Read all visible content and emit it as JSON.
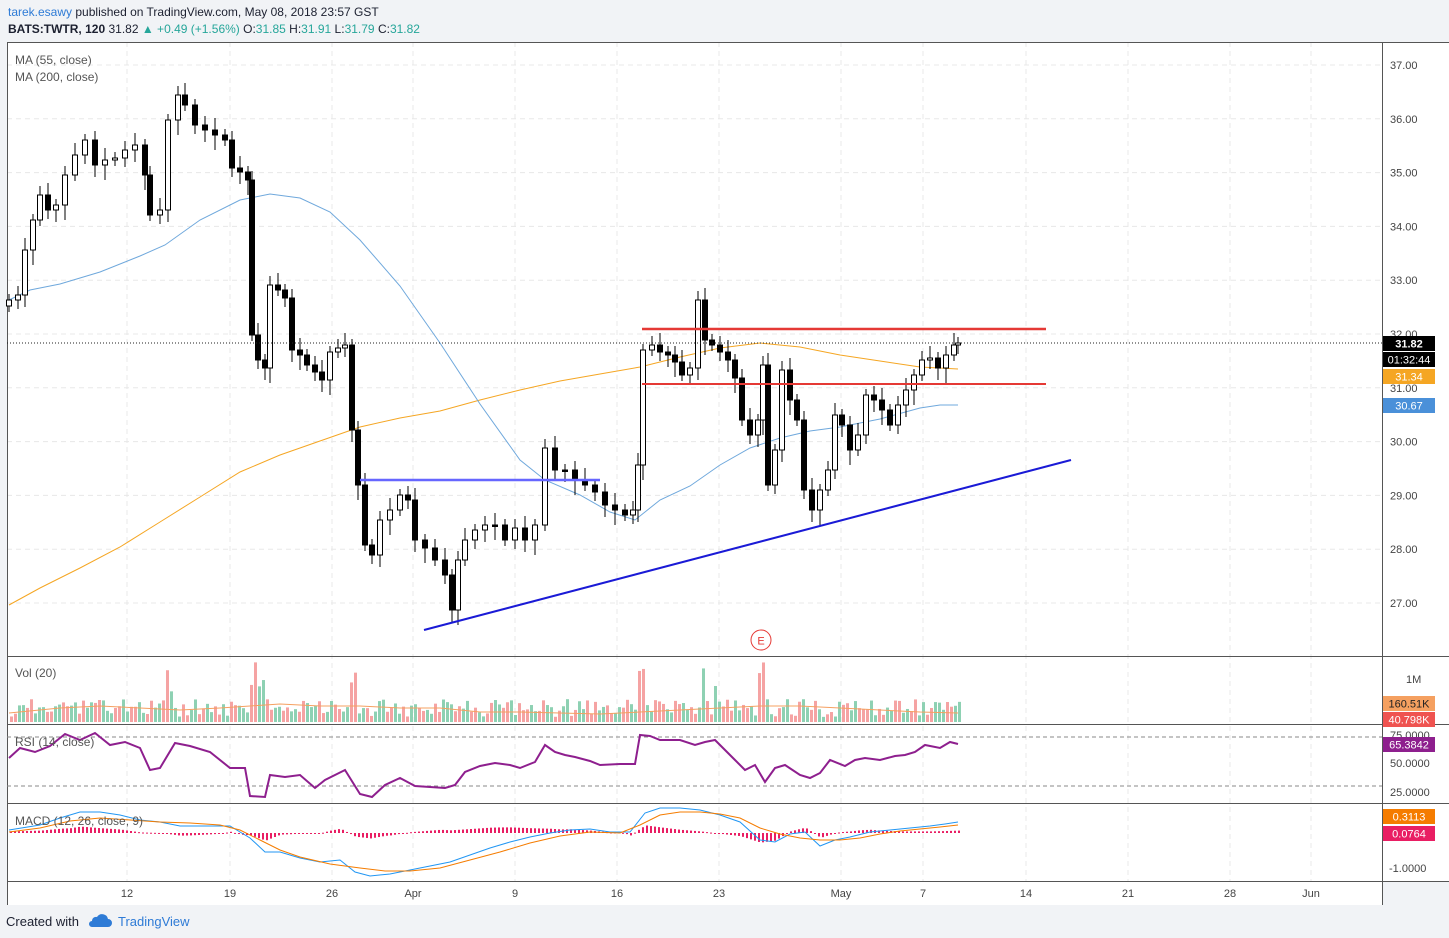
{
  "header": {
    "author": "tarek.esawy",
    "published_text": "published on TradingView.com, May 08, 2018 23:57 GST",
    "symbol_interval": "BATS:TWTR, 120",
    "last_price": "31.82",
    "change_text": "▲ +0.49 (+1.56%)",
    "open_label": "O:",
    "open": "31.85",
    "high_label": "H:",
    "high": "31.91",
    "low_label": "L:",
    "low": "31.79",
    "close_label": "C:",
    "close": "31.82"
  },
  "indicators": {
    "ma55_label": "MA (55, close)",
    "ma200_label": "MA (200, close)",
    "vol_label": "Vol (20)",
    "rsi_label": "RSI (14, close)",
    "macd_label": "MACD (12, 26, close, 9)"
  },
  "price_badges": {
    "last": "31.82",
    "countdown": "01:32:44",
    "ma200": "31.34",
    "ma55": "30.67"
  },
  "volume_badges": {
    "vol": "160.51K",
    "vol_ma": "40.798K"
  },
  "rsi_badge": "65.3842",
  "macd_badges": {
    "macd": "0.3113",
    "hist": "0.0764"
  },
  "earnings_marker": "E",
  "footer": {
    "created_with": "Created with",
    "brand": "TradingView"
  },
  "colors": {
    "up_candle": "#ffffff",
    "down_candle": "#000000",
    "wick": "#000000",
    "ma55": "#6fa8dc",
    "ma200": "#f5a623",
    "resistance": "#e53935",
    "support_line": "#1a1ad6",
    "horizontal_support": "#6666ff",
    "vol_up": "#8ed1b3",
    "vol_down": "#f5a3a3",
    "rsi": "#8e1f8e",
    "macd": "#2196f3",
    "signal": "#f57c00",
    "hist": "#e91e63"
  },
  "chart_data": {
    "type": "candlestick",
    "symbol": "BATS:TWTR",
    "interval": "120",
    "x_tick_labels": [
      "12",
      "19",
      "26",
      "Apr",
      "9",
      "16",
      "23",
      "May",
      "7",
      "14",
      "21",
      "28",
      "Jun"
    ],
    "price_axis": {
      "ticks": [
        27.0,
        28.0,
        29.0,
        30.0,
        31.0,
        32.0,
        33.0,
        34.0,
        35.0,
        36.0,
        37.0
      ],
      "ylim": [
        26.2,
        37.3
      ]
    },
    "last_price": 31.82,
    "key_closes_by_session": [
      {
        "session": "Mar 09",
        "value": 31.9
      },
      {
        "session": "Mar 12",
        "value": 35.0
      },
      {
        "session": "Mar 14",
        "value": 35.4
      },
      {
        "session": "Mar 16",
        "value": 36.6
      },
      {
        "session": "Mar 19",
        "value": 35.2
      },
      {
        "session": "Mar 20",
        "value": 34.8
      },
      {
        "session": "Mar 21",
        "value": 31.6
      },
      {
        "session": "Mar 22",
        "value": 32.7
      },
      {
        "session": "Mar 23",
        "value": 31.7
      },
      {
        "session": "Mar 26",
        "value": 31.4
      },
      {
        "session": "Mar 27",
        "value": 30.9
      },
      {
        "session": "Mar 28",
        "value": 28.4
      },
      {
        "session": "Mar 29",
        "value": 28.8
      },
      {
        "session": "Apr 02",
        "value": 27.9
      },
      {
        "session": "Apr 03",
        "value": 27.2
      },
      {
        "session": "Apr 04",
        "value": 28.2
      },
      {
        "session": "Apr 05",
        "value": 28.7
      },
      {
        "session": "Apr 06",
        "value": 28.3
      },
      {
        "session": "Apr 09",
        "value": 28.2
      },
      {
        "session": "Apr 10",
        "value": 29.3
      },
      {
        "session": "Apr 11",
        "value": 29.0
      },
      {
        "session": "Apr 12",
        "value": 28.9
      },
      {
        "session": "Apr 13",
        "value": 29.2
      },
      {
        "session": "Apr 16",
        "value": 28.6
      },
      {
        "session": "Apr 17",
        "value": 31.6
      },
      {
        "session": "Apr 18",
        "value": 31.4
      },
      {
        "session": "Apr 19",
        "value": 31.5
      },
      {
        "session": "Apr 20",
        "value": 32.3
      },
      {
        "session": "Apr 23",
        "value": 31.2
      },
      {
        "session": "Apr 24",
        "value": 30.4
      },
      {
        "session": "Apr 25",
        "value": 29.5
      },
      {
        "session": "Apr 26",
        "value": 31.0
      },
      {
        "session": "Apr 27",
        "value": 30.6
      },
      {
        "session": "Apr 30",
        "value": 28.8
      },
      {
        "session": "May 01",
        "value": 30.2
      },
      {
        "session": "May 02",
        "value": 30.4
      },
      {
        "session": "May 03",
        "value": 30.8
      },
      {
        "session": "May 04",
        "value": 30.4
      },
      {
        "session": "May 07",
        "value": 31.5
      },
      {
        "session": "May 08",
        "value": 31.82
      }
    ],
    "ma55_value": 30.67,
    "ma200_value": 31.34,
    "annotations": {
      "resistance_levels": [
        32.05,
        31.05
      ],
      "horizontal_support": 29.3,
      "rising_trendline": [
        {
          "session": "Apr 04",
          "value": 26.5
        },
        {
          "session": "May 16",
          "value": 29.6
        }
      ]
    },
    "volume": {
      "axis_ticks": [
        "1M"
      ],
      "last": "160.51K",
      "ma": "40.798K"
    },
    "rsi": {
      "axis_ticks": [
        25.0,
        50.0,
        75.0
      ],
      "last": 65.3842,
      "levels": [
        30,
        70
      ]
    },
    "macd": {
      "axis_ticks": [
        -1.0
      ],
      "macd": 0.3113,
      "hist": 0.0764
    }
  }
}
